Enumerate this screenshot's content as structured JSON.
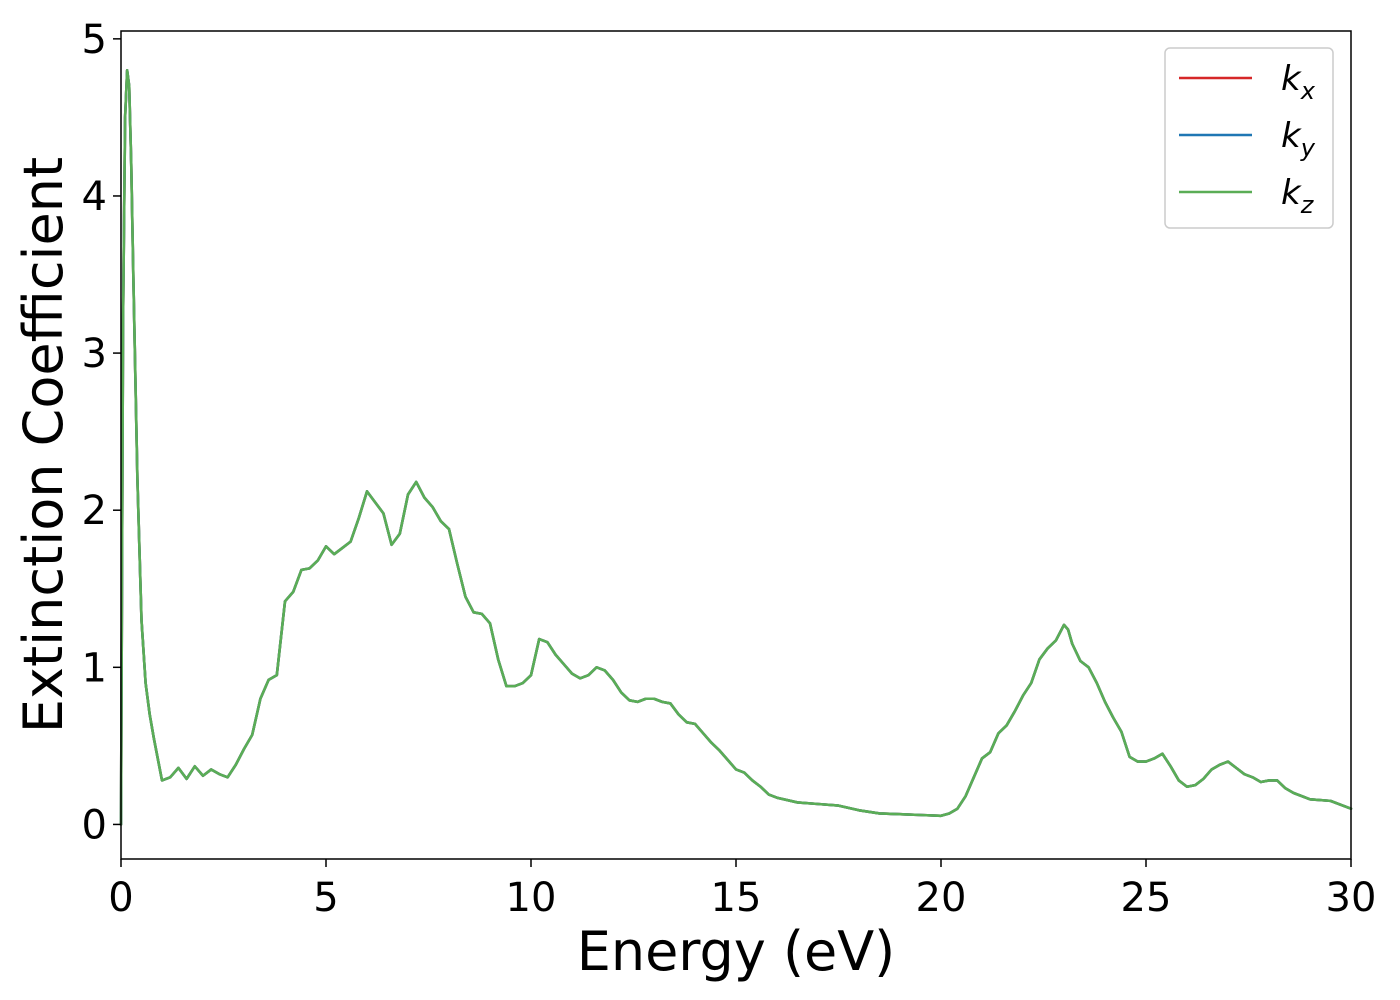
{
  "chart_data": {
    "type": "line",
    "title": "",
    "xlabel": "Energy (eV)",
    "ylabel": "Extinction Coefficient",
    "xlim": [
      0,
      30
    ],
    "ylim": [
      -0.22,
      5.05
    ],
    "xticks": [
      0,
      5,
      10,
      15,
      20,
      25,
      30
    ],
    "xtick_labels": [
      "0",
      "5",
      "10",
      "15",
      "20",
      "25",
      "30"
    ],
    "yticks": [
      0,
      1,
      2,
      3,
      4,
      5
    ],
    "ytick_labels": [
      "0",
      "1",
      "2",
      "3",
      "4",
      "5"
    ],
    "grid": false,
    "legend_position": "top-right",
    "x": [
      0.0,
      0.05,
      0.1,
      0.15,
      0.2,
      0.25,
      0.3,
      0.4,
      0.5,
      0.6,
      0.7,
      0.8,
      1.0,
      1.2,
      1.4,
      1.6,
      1.8,
      2.0,
      2.2,
      2.4,
      2.6,
      2.8,
      3.0,
      3.2,
      3.4,
      3.6,
      3.8,
      4.0,
      4.2,
      4.4,
      4.6,
      4.8,
      5.0,
      5.2,
      5.4,
      5.6,
      5.8,
      6.0,
      6.2,
      6.4,
      6.6,
      6.8,
      7.0,
      7.2,
      7.4,
      7.6,
      7.8,
      8.0,
      8.2,
      8.4,
      8.6,
      8.8,
      9.0,
      9.2,
      9.4,
      9.6,
      9.8,
      10.0,
      10.2,
      10.4,
      10.6,
      10.8,
      11.0,
      11.2,
      11.4,
      11.6,
      11.8,
      12.0,
      12.2,
      12.4,
      12.6,
      12.8,
      13.0,
      13.2,
      13.4,
      13.6,
      13.8,
      14.0,
      14.2,
      14.4,
      14.6,
      14.8,
      15.0,
      15.2,
      15.4,
      15.6,
      15.8,
      16.0,
      16.5,
      17.0,
      17.5,
      18.0,
      18.5,
      19.0,
      19.5,
      20.0,
      20.2,
      20.4,
      20.6,
      20.8,
      21.0,
      21.2,
      21.4,
      21.6,
      21.8,
      22.0,
      22.2,
      22.4,
      22.6,
      22.8,
      23.0,
      23.1,
      23.2,
      23.4,
      23.6,
      23.8,
      24.0,
      24.2,
      24.4,
      24.6,
      24.8,
      25.0,
      25.2,
      25.4,
      25.6,
      25.8,
      26.0,
      26.2,
      26.4,
      26.6,
      26.8,
      27.0,
      27.2,
      27.4,
      27.6,
      27.8,
      28.0,
      28.2,
      28.4,
      28.6,
      28.8,
      29.0,
      29.5,
      30.0
    ],
    "series": [
      {
        "name": "k_x",
        "color": "#d62728",
        "values": [
          0.0,
          3.2,
          4.5,
          4.8,
          4.7,
          4.2,
          3.5,
          2.2,
          1.3,
          0.9,
          0.7,
          0.55,
          0.28,
          0.3,
          0.36,
          0.29,
          0.37,
          0.31,
          0.35,
          0.32,
          0.3,
          0.38,
          0.48,
          0.57,
          0.8,
          0.92,
          0.95,
          1.42,
          1.48,
          1.62,
          1.63,
          1.68,
          1.77,
          1.72,
          1.76,
          1.8,
          1.95,
          2.12,
          2.05,
          1.98,
          1.78,
          1.85,
          2.1,
          2.18,
          2.08,
          2.02,
          1.93,
          1.88,
          1.66,
          1.45,
          1.35,
          1.34,
          1.28,
          1.05,
          0.88,
          0.88,
          0.9,
          0.95,
          1.18,
          1.16,
          1.08,
          1.02,
          0.96,
          0.93,
          0.95,
          1.0,
          0.98,
          0.92,
          0.84,
          0.79,
          0.78,
          0.8,
          0.8,
          0.78,
          0.77,
          0.7,
          0.65,
          0.64,
          0.58,
          0.52,
          0.47,
          0.41,
          0.35,
          0.33,
          0.28,
          0.24,
          0.19,
          0.17,
          0.14,
          0.13,
          0.12,
          0.09,
          0.07,
          0.065,
          0.06,
          0.055,
          0.07,
          0.1,
          0.18,
          0.3,
          0.42,
          0.46,
          0.58,
          0.63,
          0.72,
          0.82,
          0.9,
          1.05,
          1.12,
          1.17,
          1.27,
          1.24,
          1.15,
          1.04,
          1.0,
          0.9,
          0.78,
          0.68,
          0.59,
          0.43,
          0.4,
          0.4,
          0.42,
          0.45,
          0.37,
          0.28,
          0.24,
          0.25,
          0.29,
          0.35,
          0.38,
          0.4,
          0.36,
          0.32,
          0.3,
          0.27,
          0.28,
          0.28,
          0.23,
          0.2,
          0.18,
          0.16,
          0.15,
          0.1
        ]
      },
      {
        "name": "k_y",
        "color": "#1f77b4",
        "values": [
          0.0,
          3.2,
          4.5,
          4.8,
          4.7,
          4.2,
          3.5,
          2.2,
          1.3,
          0.9,
          0.7,
          0.55,
          0.28,
          0.3,
          0.36,
          0.29,
          0.37,
          0.31,
          0.35,
          0.32,
          0.3,
          0.38,
          0.48,
          0.57,
          0.8,
          0.92,
          0.95,
          1.42,
          1.48,
          1.62,
          1.63,
          1.68,
          1.77,
          1.72,
          1.76,
          1.8,
          1.95,
          2.12,
          2.05,
          1.98,
          1.78,
          1.85,
          2.1,
          2.18,
          2.08,
          2.02,
          1.93,
          1.88,
          1.66,
          1.45,
          1.35,
          1.34,
          1.28,
          1.05,
          0.88,
          0.88,
          0.9,
          0.95,
          1.18,
          1.16,
          1.08,
          1.02,
          0.96,
          0.93,
          0.95,
          1.0,
          0.98,
          0.92,
          0.84,
          0.79,
          0.78,
          0.8,
          0.8,
          0.78,
          0.77,
          0.7,
          0.65,
          0.64,
          0.58,
          0.52,
          0.47,
          0.41,
          0.35,
          0.33,
          0.28,
          0.24,
          0.19,
          0.17,
          0.14,
          0.13,
          0.12,
          0.09,
          0.07,
          0.065,
          0.06,
          0.055,
          0.07,
          0.1,
          0.18,
          0.3,
          0.42,
          0.46,
          0.58,
          0.63,
          0.72,
          0.82,
          0.9,
          1.05,
          1.12,
          1.17,
          1.27,
          1.24,
          1.15,
          1.04,
          1.0,
          0.9,
          0.78,
          0.68,
          0.59,
          0.43,
          0.4,
          0.4,
          0.42,
          0.45,
          0.37,
          0.28,
          0.24,
          0.25,
          0.29,
          0.35,
          0.38,
          0.4,
          0.36,
          0.32,
          0.3,
          0.27,
          0.28,
          0.28,
          0.23,
          0.2,
          0.18,
          0.16,
          0.15,
          0.1
        ]
      },
      {
        "name": "k_z",
        "color": "#5aad56",
        "values": [
          0.0,
          3.2,
          4.5,
          4.8,
          4.7,
          4.2,
          3.5,
          2.2,
          1.3,
          0.9,
          0.7,
          0.55,
          0.28,
          0.3,
          0.36,
          0.29,
          0.37,
          0.31,
          0.35,
          0.32,
          0.3,
          0.38,
          0.48,
          0.57,
          0.8,
          0.92,
          0.95,
          1.42,
          1.48,
          1.62,
          1.63,
          1.68,
          1.77,
          1.72,
          1.76,
          1.8,
          1.95,
          2.12,
          2.05,
          1.98,
          1.78,
          1.85,
          2.1,
          2.18,
          2.08,
          2.02,
          1.93,
          1.88,
          1.66,
          1.45,
          1.35,
          1.34,
          1.28,
          1.05,
          0.88,
          0.88,
          0.9,
          0.95,
          1.18,
          1.16,
          1.08,
          1.02,
          0.96,
          0.93,
          0.95,
          1.0,
          0.98,
          0.92,
          0.84,
          0.79,
          0.78,
          0.8,
          0.8,
          0.78,
          0.77,
          0.7,
          0.65,
          0.64,
          0.58,
          0.52,
          0.47,
          0.41,
          0.35,
          0.33,
          0.28,
          0.24,
          0.19,
          0.17,
          0.14,
          0.13,
          0.12,
          0.09,
          0.07,
          0.065,
          0.06,
          0.055,
          0.07,
          0.1,
          0.18,
          0.3,
          0.42,
          0.46,
          0.58,
          0.63,
          0.72,
          0.82,
          0.9,
          1.05,
          1.12,
          1.17,
          1.27,
          1.24,
          1.15,
          1.04,
          1.0,
          0.9,
          0.78,
          0.68,
          0.59,
          0.43,
          0.4,
          0.4,
          0.42,
          0.45,
          0.37,
          0.28,
          0.24,
          0.25,
          0.29,
          0.35,
          0.38,
          0.4,
          0.36,
          0.32,
          0.3,
          0.27,
          0.28,
          0.28,
          0.23,
          0.2,
          0.18,
          0.16,
          0.15,
          0.1
        ]
      }
    ],
    "legend": [
      {
        "main": "k",
        "sub": "x",
        "color": "#d62728"
      },
      {
        "main": "k",
        "sub": "y",
        "color": "#1f77b4"
      },
      {
        "main": "k",
        "sub": "z",
        "color": "#5aad56"
      }
    ]
  }
}
